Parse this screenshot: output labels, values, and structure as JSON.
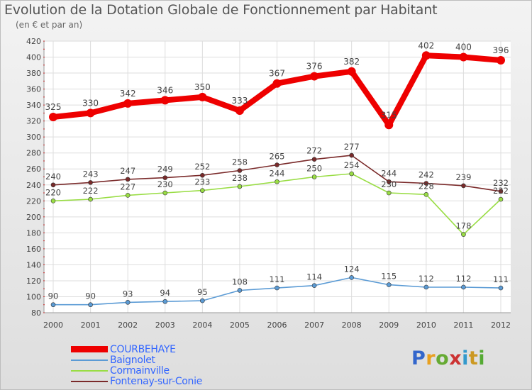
{
  "title": "Evolution de la Dotation Globale de Fonctionnement par Habitant",
  "subtitle": "(en € et par an)",
  "logo": {
    "text": "Proxiti",
    "colors": [
      "#3366cc",
      "#e8a020",
      "#66aa33",
      "#cc3333",
      "#3399cc",
      "#cc9922",
      "#55aa33"
    ]
  },
  "chart_data": {
    "type": "line",
    "title": "Evolution de la Dotation Globale de Fonctionnement par Habitant",
    "subtitle": "(en € et par an)",
    "xlabel": "",
    "ylabel": "",
    "ylim": [
      80,
      420
    ],
    "yticks": [
      "80",
      "100",
      "120",
      "140",
      "160",
      "180",
      "200",
      "220",
      "240",
      "260",
      "280",
      "300",
      "320",
      "340",
      "360",
      "380",
      "400",
      "420"
    ],
    "grid": true,
    "categories": [
      "2000",
      "2001",
      "2002",
      "2003",
      "2004",
      "2005",
      "2006",
      "2007",
      "2008",
      "2009",
      "2010",
      "2011",
      "2012"
    ],
    "series": [
      {
        "name": "COURBEHAYE",
        "color": "#ee0000",
        "values": [
          325,
          330,
          342,
          346,
          350,
          333,
          367,
          376,
          382,
          315,
          402,
          400,
          396
        ],
        "labels": [
          "325",
          "330",
          "342",
          "346",
          "350",
          "333",
          "367",
          "376",
          "382",
          "315",
          "402",
          "400",
          "396"
        ]
      },
      {
        "name": "Baignolet",
        "color": "#5b9bd5",
        "values": [
          90,
          90,
          93,
          94,
          95,
          108,
          111,
          114,
          124,
          115,
          112,
          112,
          111
        ],
        "labels": [
          "90",
          "90",
          "93",
          "94",
          "95",
          "108",
          "111",
          "114",
          "124",
          "115",
          "112",
          "112",
          "111"
        ]
      },
      {
        "name": "Cormainville",
        "color": "#99dd44",
        "values": [
          220,
          222,
          227,
          230,
          233,
          238,
          244,
          250,
          254,
          230,
          228,
          178,
          222
        ],
        "labels": [
          "220",
          "222",
          "227",
          "230",
          "233",
          "238",
          "244",
          "250",
          "254",
          "230",
          "228",
          "178",
          "222"
        ]
      },
      {
        "name": "Fontenay-sur-Conie",
        "color": "#7a2a2a",
        "values": [
          240,
          243,
          247,
          249,
          252,
          258,
          265,
          272,
          277,
          244,
          242,
          239,
          232
        ],
        "labels": [
          "240",
          "243",
          "247",
          "249",
          "252",
          "258",
          "265",
          "272",
          "277",
          "244",
          "242",
          "239",
          "232"
        ]
      }
    ],
    "legend": [
      {
        "label": "COURBEHAYE",
        "color": "#ee0000",
        "text_color": "#3366ff"
      },
      {
        "label": "Baignolet",
        "color": "#5b9bd5",
        "text_color": "#3366ff"
      },
      {
        "label": "Cormainville",
        "color": "#99dd44",
        "text_color": "#3366ff"
      },
      {
        "label": "Fontenay-sur-Conie",
        "color": "#7a2a2a",
        "text_color": "#3366ff"
      }
    ],
    "legend_position": "bottom-left"
  }
}
